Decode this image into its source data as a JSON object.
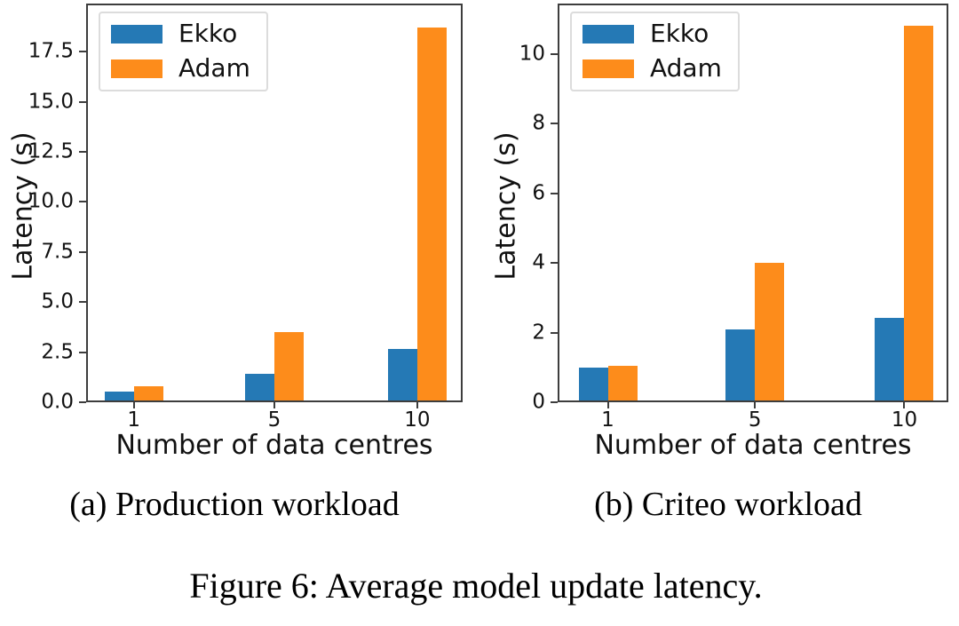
{
  "figure": {
    "captions": [
      "(a) Production workload",
      "(b) Criteo workload"
    ],
    "title": "Figure 6: Average model update latency."
  },
  "colors": {
    "ekko": "#2579b5",
    "adam": "#fd8c1b",
    "spine": "#3d3d3d",
    "legend_border": "#dcdcdc",
    "text": "#111111"
  },
  "chart_data": [
    {
      "type": "bar",
      "title": "(a) Production workload",
      "categories": [
        "1",
        "5",
        "10"
      ],
      "series": [
        {
          "name": "Ekko",
          "color": "#2579b5",
          "values": [
            0.45,
            1.35,
            2.6
          ]
        },
        {
          "name": "Adam",
          "color": "#fd8c1b",
          "values": [
            0.7,
            3.45,
            18.8
          ]
        }
      ],
      "xlabel": "Number of data centres",
      "ylabel": "Latency (s)",
      "ylim": [
        0,
        19.9
      ],
      "yticks": [
        "0.0",
        "2.5",
        "5.0",
        "7.5",
        "10.0",
        "12.5",
        "15.0",
        "17.5"
      ],
      "ytick_values": [
        0,
        2.5,
        5,
        7.5,
        10,
        12.5,
        15,
        17.5
      ],
      "legend_position": "upper left",
      "grid": false
    },
    {
      "type": "bar",
      "title": "(b) Criteo workload",
      "categories": [
        "1",
        "5",
        "10"
      ],
      "series": [
        {
          "name": "Ekko",
          "color": "#2579b5",
          "values": [
            0.95,
            2.05,
            2.4
          ]
        },
        {
          "name": "Adam",
          "color": "#fd8c1b",
          "values": [
            1.0,
            4.0,
            10.85
          ]
        }
      ],
      "xlabel": "Number of data centres",
      "ylabel": "Latency (s)",
      "ylim": [
        0,
        11.45
      ],
      "yticks": [
        "0",
        "2",
        "4",
        "6",
        "8",
        "10"
      ],
      "ytick_values": [
        0,
        2,
        4,
        6,
        8,
        10
      ],
      "legend_position": "upper left",
      "grid": false
    }
  ]
}
